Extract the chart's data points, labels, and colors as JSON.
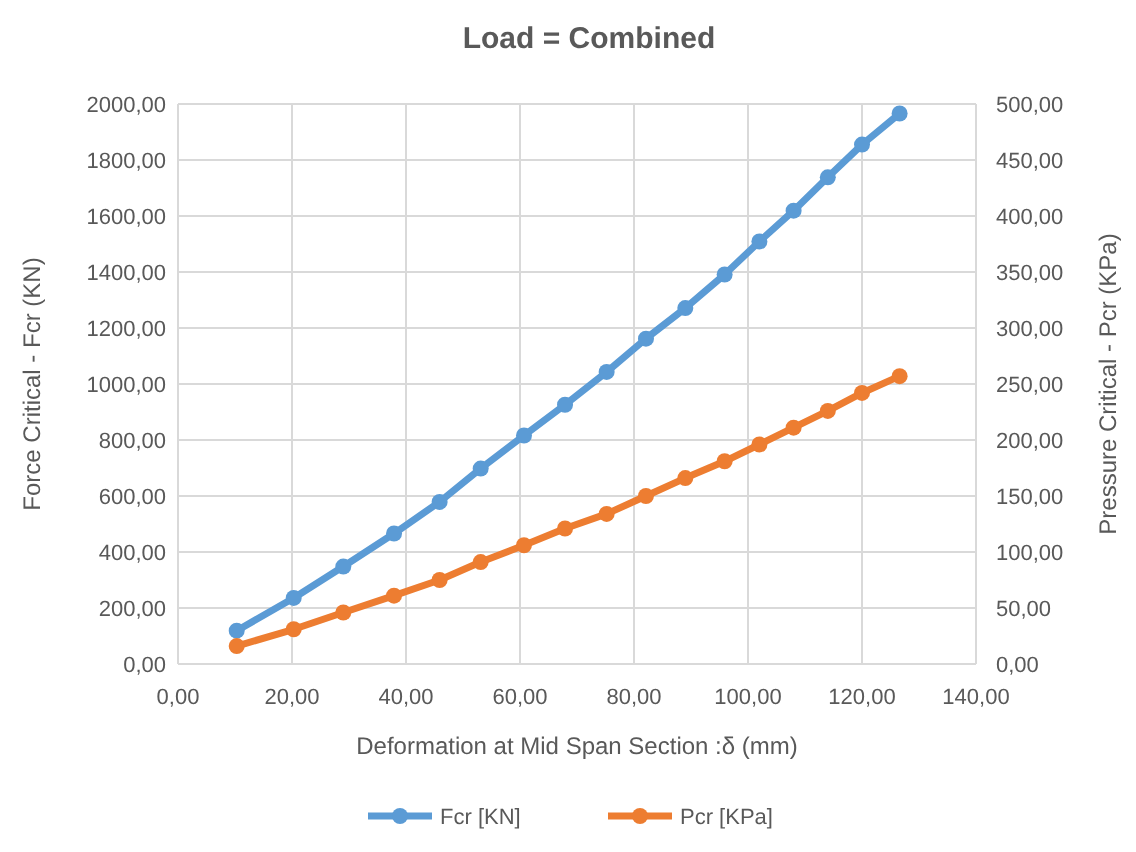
{
  "chart_data": {
    "type": "line",
    "title": "Load = Combined",
    "xlabel": "Deformation at Mid Span Section :δ (mm)",
    "ylabel": "Force Critical - Fcr  (KN)",
    "y2label": "Pressure Critical - Pcr (KPa)",
    "x": [
      10.3,
      20.3,
      29,
      37.9,
      45.9,
      53.1,
      60.7,
      67.9,
      75.2,
      82.1,
      89,
      95.9,
      102,
      108,
      114,
      120,
      126.6
    ],
    "series": [
      {
        "name": "Fcr [KN]",
        "color": "#5b9bd5",
        "values": [
          119,
          236,
          348,
          466,
          579,
          698,
          816,
          926,
          1043,
          1162,
          1271,
          1391,
          1509,
          1619,
          1738,
          1855,
          1966
        ]
      },
      {
        "name": "Pcr [KPa]",
        "color": "#ed7d31",
        "axis": "y2",
        "values": [
          16,
          31,
          46,
          61,
          75,
          91,
          106,
          121,
          134,
          150,
          166,
          181,
          196,
          211,
          226,
          242,
          257
        ]
      }
    ],
    "xlim": [
      0,
      140
    ],
    "xticks": [
      {
        "value": 0,
        "label": "0,00"
      },
      {
        "value": 20,
        "label": "20,00"
      },
      {
        "value": 40,
        "label": "40,00"
      },
      {
        "value": 60,
        "label": "60,00"
      },
      {
        "value": 80,
        "label": "80,00"
      },
      {
        "value": 100,
        "label": "100,00"
      },
      {
        "value": 120,
        "label": "120,00"
      },
      {
        "value": 140,
        "label": "140,00"
      }
    ],
    "ylim": [
      0,
      2000
    ],
    "yticks": [
      {
        "value": 0,
        "label": "0,00"
      },
      {
        "value": 200,
        "label": "200,00"
      },
      {
        "value": 400,
        "label": "400,00"
      },
      {
        "value": 600,
        "label": "600,00"
      },
      {
        "value": 800,
        "label": "800,00"
      },
      {
        "value": 1000,
        "label": "1000,00"
      },
      {
        "value": 1200,
        "label": "1200,00"
      },
      {
        "value": 1400,
        "label": "1400,00"
      },
      {
        "value": 1600,
        "label": "1600,00"
      },
      {
        "value": 1800,
        "label": "1800,00"
      },
      {
        "value": 2000,
        "label": "2000,00"
      }
    ],
    "y2lim": [
      0,
      500
    ],
    "y2ticks": [
      {
        "value": 0,
        "label": "0,00"
      },
      {
        "value": 50,
        "label": "50,00"
      },
      {
        "value": 100,
        "label": "100,00"
      },
      {
        "value": 150,
        "label": "150,00"
      },
      {
        "value": 200,
        "label": "200,00"
      },
      {
        "value": 250,
        "label": "250,00"
      },
      {
        "value": 300,
        "label": "300,00"
      },
      {
        "value": 350,
        "label": "350,00"
      },
      {
        "value": 400,
        "label": "400,00"
      },
      {
        "value": 450,
        "label": "450,00"
      },
      {
        "value": 500,
        "label": "500,00"
      }
    ],
    "grid": true,
    "legend": "bottom",
    "marker": "circle",
    "line_style": "solid"
  }
}
